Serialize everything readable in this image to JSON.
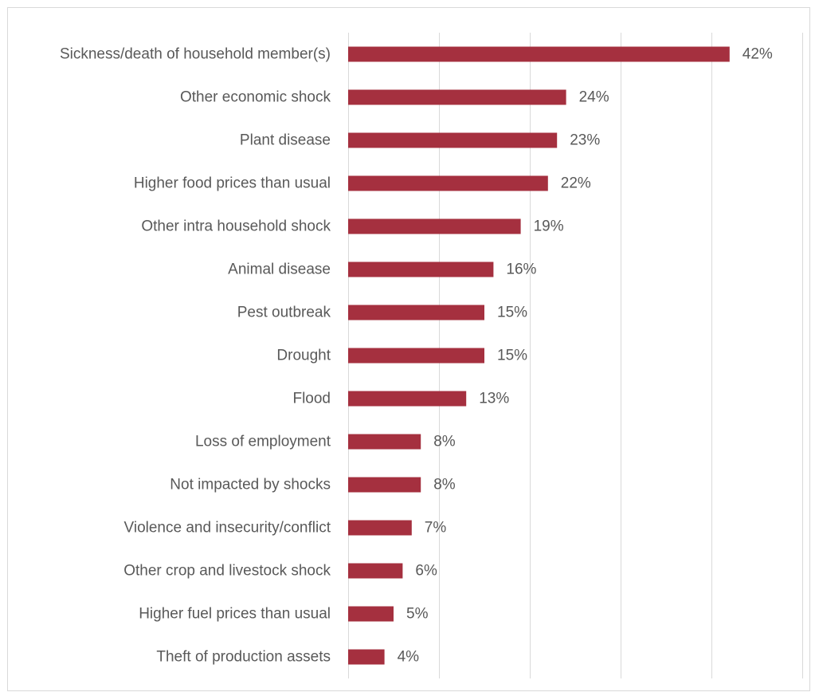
{
  "chart_data": {
    "type": "bar",
    "orientation": "horizontal",
    "categories": [
      "Sickness/death of household member(s)",
      "Other economic shock",
      "Plant disease",
      "Higher food prices than usual",
      "Other intra household shock",
      "Animal disease",
      "Pest outbreak",
      "Drought",
      "Flood",
      "Loss of employment",
      "Not impacted by shocks",
      "Violence and insecurity/conflict",
      "Other crop and livestock shock",
      "Higher fuel prices than usual",
      "Theft of production assets"
    ],
    "values": [
      42,
      24,
      23,
      22,
      19,
      16,
      15,
      15,
      13,
      8,
      8,
      7,
      6,
      5,
      4
    ],
    "data_labels": [
      "42%",
      "24%",
      "23%",
      "22%",
      "19%",
      "16%",
      "15%",
      "15%",
      "13%",
      "8%",
      "8%",
      "7%",
      "6%",
      "5%",
      "4%"
    ],
    "xlim": [
      0,
      50
    ],
    "grid": true,
    "vertical_gridlines_at": [
      0,
      10,
      20,
      30,
      40,
      50
    ],
    "bar_color": "#a5303f",
    "gridline_color": "#d9d9d9",
    "label_color": "#595959",
    "title": "",
    "xlabel": "",
    "ylabel": "",
    "legend": "none"
  }
}
